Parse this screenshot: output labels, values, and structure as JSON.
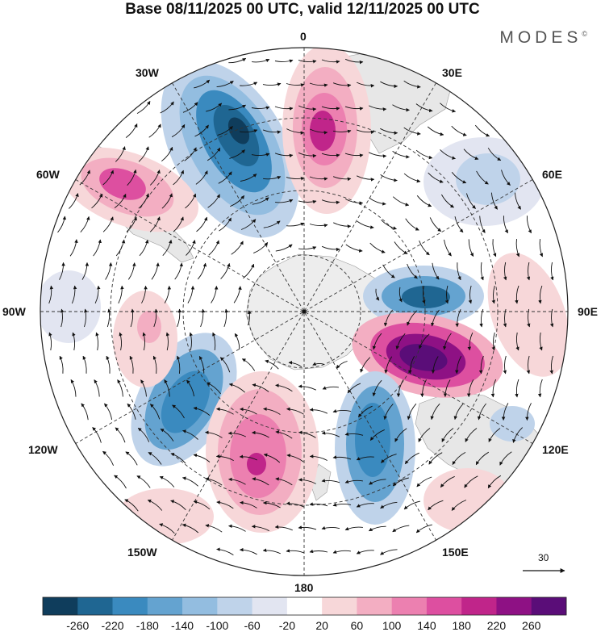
{
  "title": "Base 08/11/2025 00 UTC, valid 12/11/2025 00 UTC",
  "brand": "MODES",
  "brand_mark": "©",
  "longitude_labels": {
    "lon0": "0",
    "lon30e": "30E",
    "lon60e": "60E",
    "lon90e": "90E",
    "lon120e": "120E",
    "lon150e": "150E",
    "lon180": "180",
    "lon150w": "150W",
    "lon120w": "120W",
    "lon90w": "90W",
    "lon60w": "60W",
    "lon30w": "30W"
  },
  "reference_vector": {
    "label": "30"
  },
  "colorbar": {
    "colors": [
      "#0f3d5c",
      "#1f6692",
      "#3a8abf",
      "#64a3d0",
      "#93bde0",
      "#bfd3ea",
      "#e2e5f1",
      "#ffffff",
      "#f7d7d9",
      "#f3aec2",
      "#ec80b0",
      "#dd4fa0",
      "#c0258a",
      "#8e1184",
      "#5a0d78"
    ],
    "tick_labels": [
      "-260",
      "-220",
      "-180",
      "-140",
      "-100",
      "-60",
      "-20",
      "20",
      "60",
      "100",
      "140",
      "180",
      "220",
      "260"
    ]
  },
  "colors": {
    "land": "#e8e8e8",
    "antarctica": "#ededed",
    "frame": "#222222"
  }
}
